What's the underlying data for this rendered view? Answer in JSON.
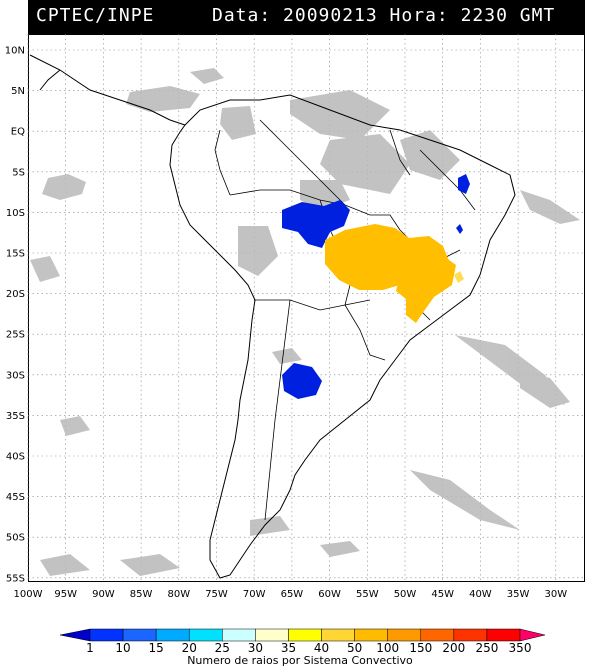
{
  "header": {
    "left": "CPTEC/INPE",
    "right": "Data: 20090213 Hora: 2230 GMT"
  },
  "map": {
    "lat_labels": [
      "10N",
      "5N",
      "EQ",
      "5S",
      "10S",
      "15S",
      "20S",
      "25S",
      "30S",
      "35S",
      "40S",
      "45S",
      "50S",
      "55S"
    ],
    "lon_labels": [
      "100W",
      "95W",
      "90W",
      "85W",
      "80W",
      "75W",
      "70W",
      "65W",
      "60W",
      "55W",
      "50W",
      "45W",
      "40W",
      "35W",
      "30W"
    ]
  },
  "colorbar": {
    "ticks": [
      "1",
      "10",
      "15",
      "20",
      "25",
      "30",
      "35",
      "40",
      "50",
      "100",
      "150",
      "200",
      "250",
      "350"
    ],
    "colors": [
      "#0000cc",
      "#0033ff",
      "#1a66ff",
      "#00aaff",
      "#00e0ff",
      "#ccffff",
      "#ffffcc",
      "#ffff00",
      "#ffd633",
      "#ffbb00",
      "#ff9900",
      "#ff6600",
      "#ff3300",
      "#ff0000",
      "#ff0066"
    ],
    "title": "Numero de raios por Sistema Convectivo"
  }
}
